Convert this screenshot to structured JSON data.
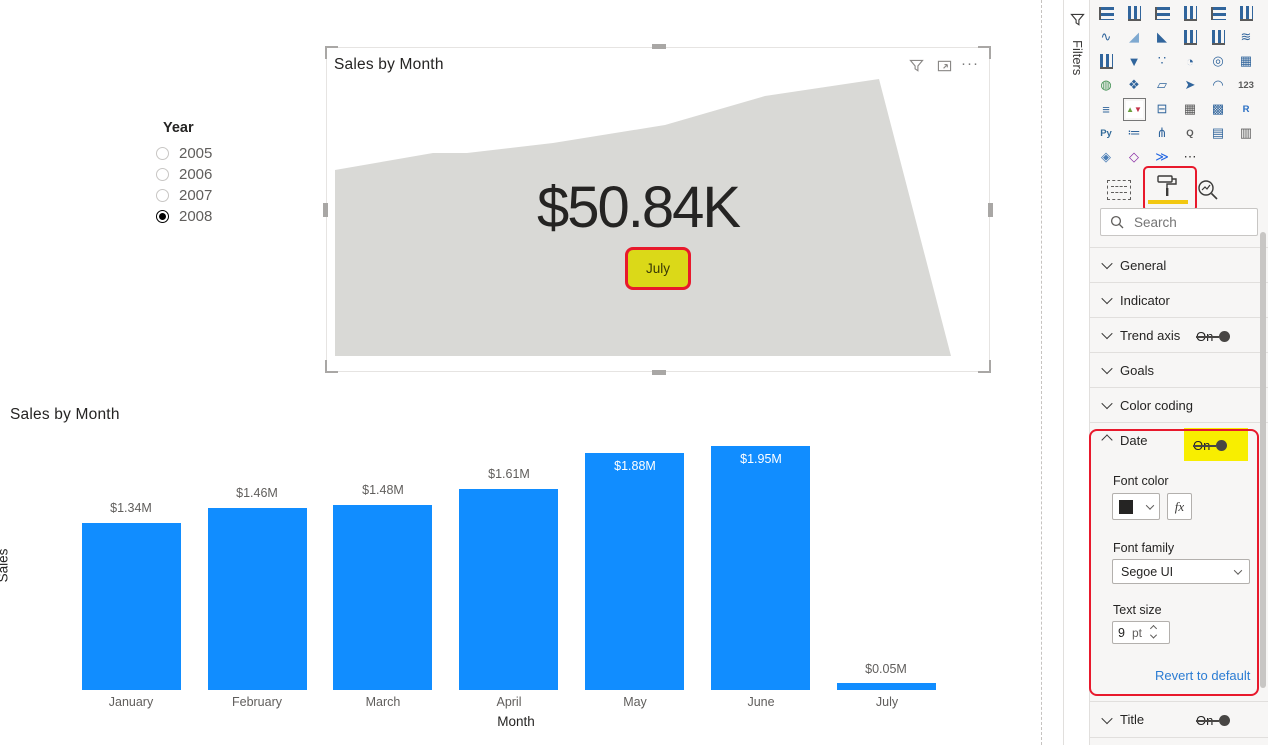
{
  "canvas": {
    "slicer": {
      "title": "Year",
      "options": [
        {
          "label": "2005",
          "selected": false
        },
        {
          "label": "2006",
          "selected": false
        },
        {
          "label": "2007",
          "selected": false
        },
        {
          "label": "2008",
          "selected": true
        }
      ]
    },
    "kpi": {
      "title": "Sales by Month",
      "value": "$50.84K",
      "date_label": "July",
      "header_icons": [
        {
          "name": "filter"
        },
        {
          "name": "focus-mode"
        },
        {
          "name": "more-options",
          "glyph": "···"
        }
      ]
    },
    "bar_chart": {
      "title": "Sales by Month",
      "xlabel": "Month",
      "ylabel": "Sales"
    }
  },
  "chart_data": [
    {
      "type": "area",
      "visual": "kpi-card",
      "title": "Sales by Month",
      "indicator_value": "$50.84K",
      "trend_axis_label": "July",
      "x": [
        "January",
        "February",
        "March",
        "April",
        "May",
        "June",
        "July"
      ],
      "series": [
        {
          "name": "Sales",
          "values": [
            1.34,
            1.46,
            1.48,
            1.61,
            1.88,
            1.95,
            0.05
          ]
        }
      ],
      "legend": false,
      "grid": false,
      "area_color": "#D9D9D6"
    },
    {
      "type": "bar",
      "title": "Sales by Month",
      "categories": [
        "January",
        "February",
        "March",
        "April",
        "May",
        "June",
        "July"
      ],
      "values": [
        1.34,
        1.46,
        1.48,
        1.61,
        1.88,
        1.95,
        0.05
      ],
      "labels": [
        "$1.34M",
        "$1.46M",
        "$1.48M",
        "$1.61M",
        "$1.88M",
        "$1.95M",
        "$0.05M"
      ],
      "xlabel": "Month",
      "ylabel": "Sales",
      "ylim": [
        0,
        2.0
      ],
      "grid": false,
      "legend": false,
      "bar_color": "#118DFF"
    }
  ],
  "filters_pane": {
    "label": "Filters"
  },
  "viz_pane": {
    "tabs": [
      {
        "name": "fields"
      },
      {
        "name": "format",
        "selected": true
      },
      {
        "name": "analytics"
      }
    ],
    "search_placeholder": "Search",
    "icons": [
      {
        "name": "stacked-bar-chart",
        "kind": "hbars"
      },
      {
        "name": "stacked-column-chart",
        "kind": "vbars"
      },
      {
        "name": "clustered-bar-chart",
        "kind": "hbars"
      },
      {
        "name": "clustered-column-chart",
        "kind": "vbars"
      },
      {
        "name": "100-stacked-bar-chart",
        "kind": "hbars"
      },
      {
        "name": "100-stacked-column-chart",
        "kind": "vbars"
      },
      {
        "name": "line-chart",
        "glyph": "∿"
      },
      {
        "name": "area-chart",
        "glyph": "◢",
        "color": "#7FA9D0"
      },
      {
        "name": "stacked-area-chart",
        "glyph": "◣"
      },
      {
        "name": "line-and-stacked-column-chart",
        "kind": "vbars"
      },
      {
        "name": "line-and-clustered-column-chart",
        "kind": "vbars"
      },
      {
        "name": "ribbon-chart",
        "glyph": "≋"
      },
      {
        "name": "waterfall-chart",
        "kind": "vbars"
      },
      {
        "name": "funnel-chart",
        "glyph": "▼"
      },
      {
        "name": "scatter-chart",
        "glyph": "∵"
      },
      {
        "name": "pie-chart",
        "glyph": "◔"
      },
      {
        "name": "donut-chart",
        "glyph": "◎"
      },
      {
        "name": "treemap",
        "glyph": "▦"
      },
      {
        "name": "map",
        "glyph": "◍",
        "color": "#3E8E50"
      },
      {
        "name": "filled-map",
        "glyph": "❖"
      },
      {
        "name": "shape-map",
        "glyph": "▱"
      },
      {
        "name": "azure-map",
        "glyph": "➤"
      },
      {
        "name": "gauge",
        "glyph": "◠"
      },
      {
        "name": "card",
        "glyph": "123",
        "kind": "text",
        "color": "#5A5A5A"
      },
      {
        "name": "multi-row-card",
        "glyph": "≡"
      },
      {
        "name": "kpi",
        "kind": "kpi",
        "selected": true
      },
      {
        "name": "slicer",
        "glyph": "⊟"
      },
      {
        "name": "table",
        "glyph": "▦",
        "color": "#5A5A5A"
      },
      {
        "name": "matrix",
        "glyph": "▩"
      },
      {
        "name": "r-script-visual",
        "glyph": "R",
        "kind": "text",
        "color": "#276DC3"
      },
      {
        "name": "python-visual",
        "glyph": "Py",
        "kind": "text",
        "color": "#306998"
      },
      {
        "name": "parameter-slicer",
        "glyph": "≔"
      },
      {
        "name": "decomposition-tree",
        "glyph": "⋔"
      },
      {
        "name": "qa-visual",
        "glyph": "Q",
        "kind": "text",
        "color": "#5A5A5A"
      },
      {
        "name": "smart-narrative",
        "glyph": "▤"
      },
      {
        "name": "paginated-report",
        "glyph": "▥",
        "color": "#5A5A5A"
      },
      {
        "name": "arcgis-map",
        "glyph": "◈",
        "color": "#4A7DB5"
      },
      {
        "name": "power-apps",
        "glyph": "◇",
        "color": "#8A2DA5"
      },
      {
        "name": "power-automate",
        "glyph": "≫",
        "color": "#2266E3"
      },
      {
        "name": "more-visuals",
        "glyph": "⋯",
        "color": "#3B3A39"
      }
    ],
    "sections": [
      {
        "label": "General"
      },
      {
        "label": "Indicator"
      },
      {
        "label": "Trend axis",
        "toggle": "On"
      },
      {
        "label": "Goals"
      },
      {
        "label": "Color coding"
      },
      {
        "label": "Date",
        "toggle": "On",
        "expanded": true
      },
      {
        "label": "Title",
        "toggle": "On"
      }
    ],
    "date_section": {
      "font_color_label": "Font color",
      "font_color_value": "#252423",
      "fx_label": "fx",
      "font_family_label": "Font family",
      "font_family_value": "Segoe UI",
      "text_size_label": "Text size",
      "text_size_value": "9",
      "text_size_unit": "pt",
      "revert_label": "Revert to default"
    }
  },
  "colors": {
    "bar_blue": "#118DFF",
    "area_gray": "#D9D9D6",
    "highlight_yellow": "#F8EE00",
    "july_yellow": "#DBD918",
    "annotation_red": "#E8192C",
    "link_blue": "#2B7CD3",
    "toggle_gray": "#484644"
  }
}
